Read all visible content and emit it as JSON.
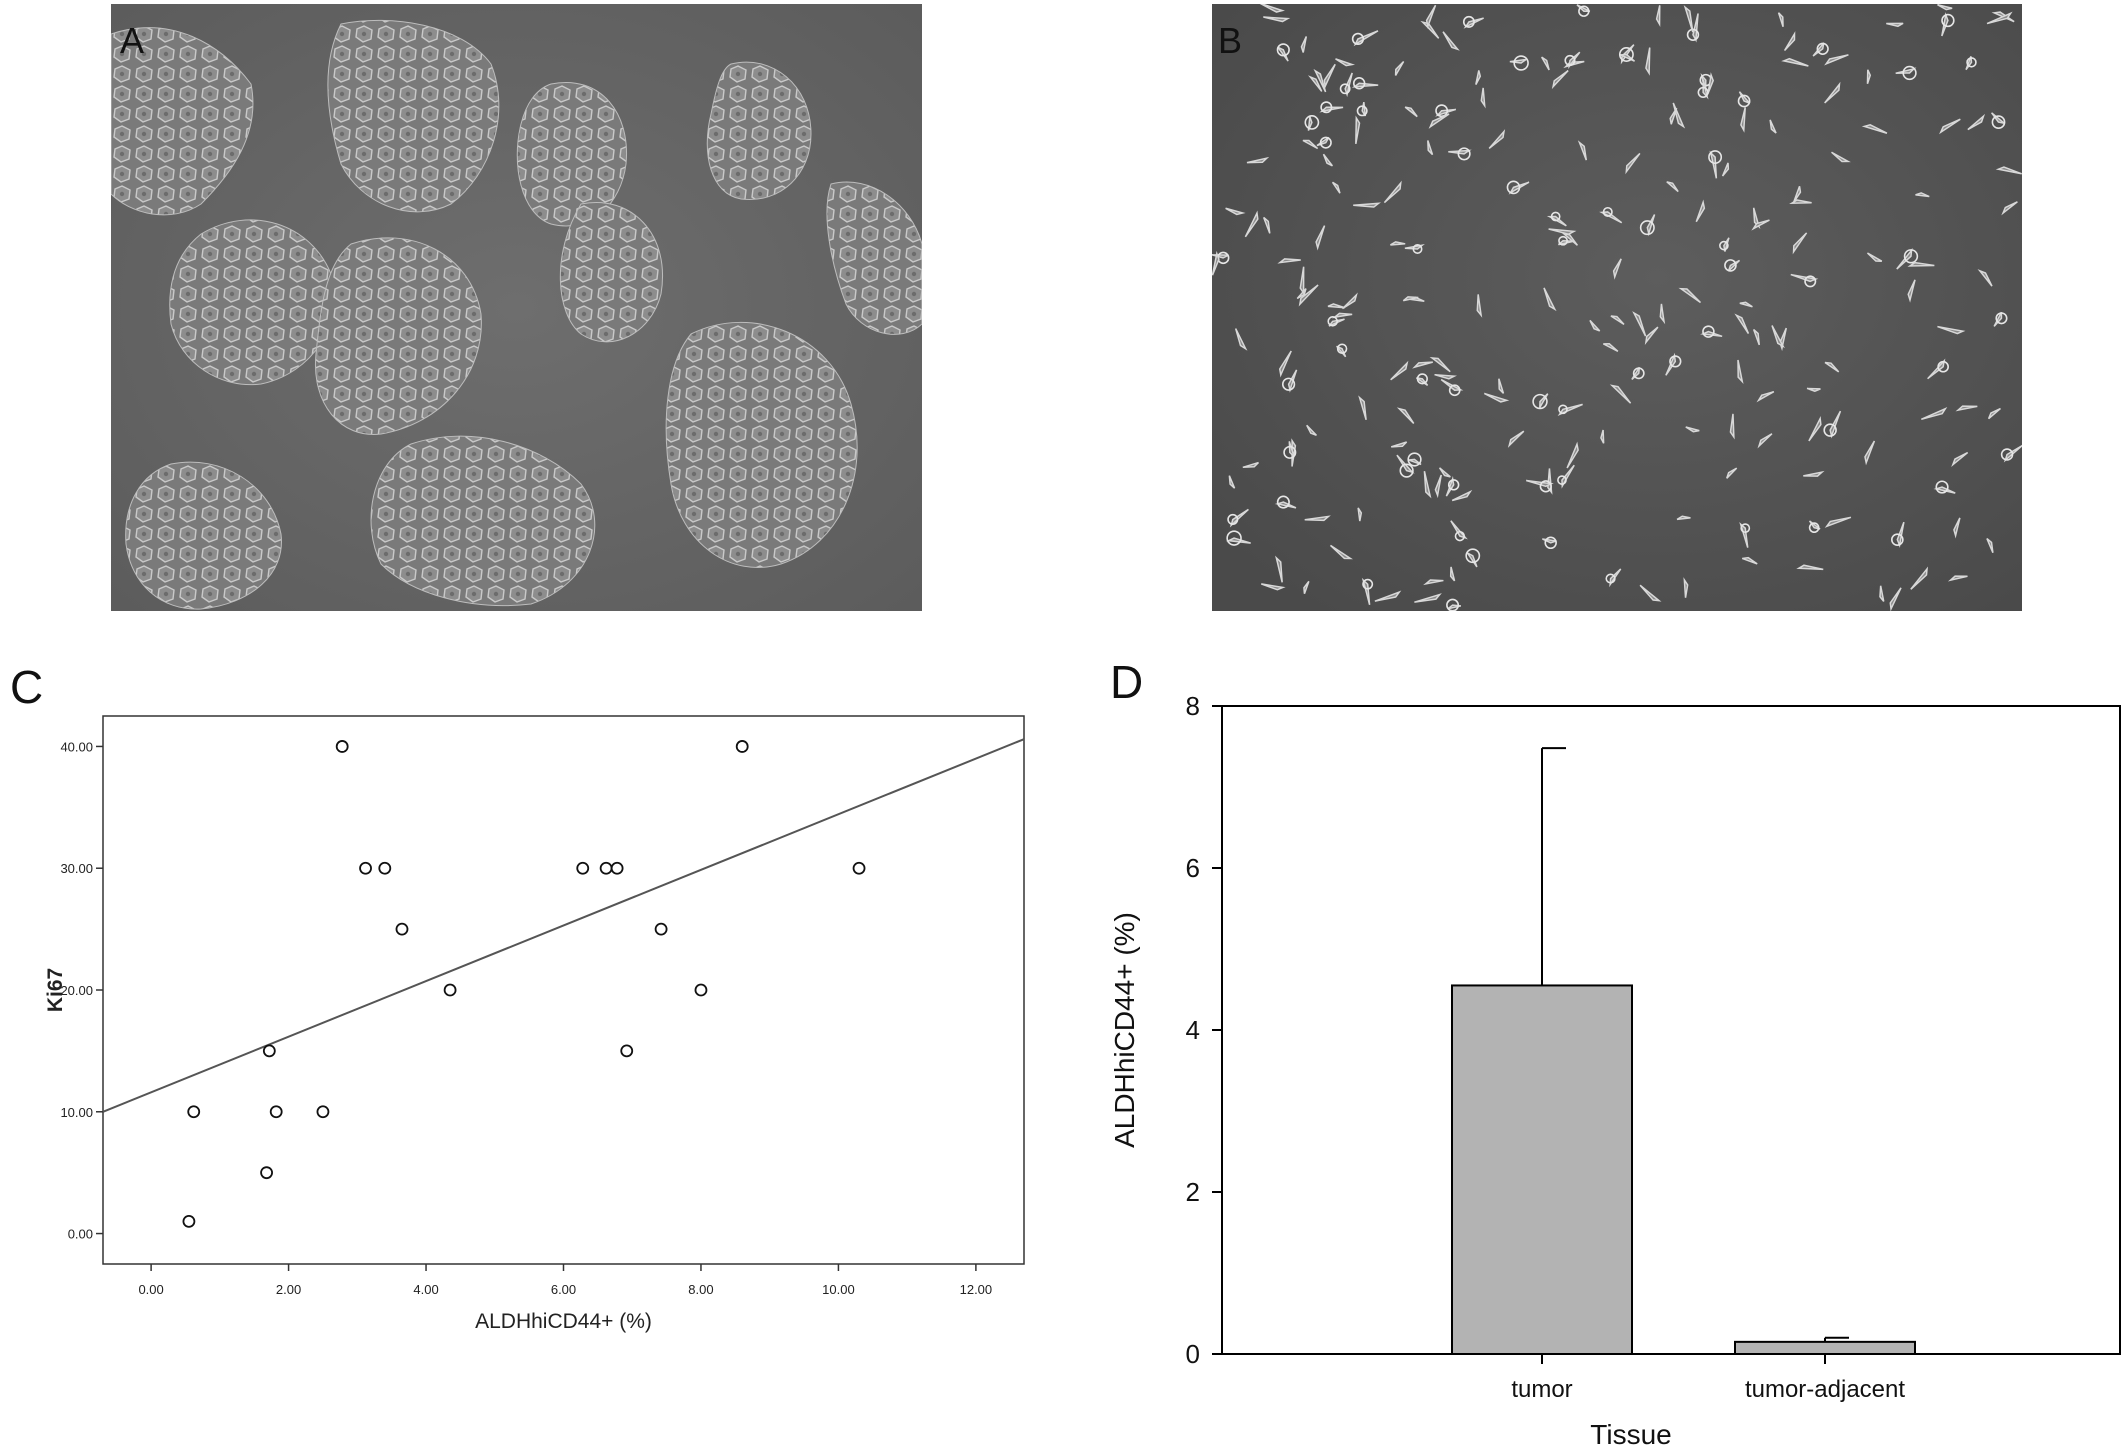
{
  "panels": {
    "a": {
      "label": "A"
    },
    "b": {
      "label": "B"
    },
    "c": {
      "label": "C"
    },
    "d": {
      "label": "D"
    }
  },
  "chart_data": [
    {
      "panel": "C",
      "type": "scatter",
      "title": "",
      "xlabel": "ALDHhiCD44+ (%)",
      "ylabel": "Ki67",
      "xlim": [
        -0.7,
        12.7
      ],
      "ylim": [
        -2.5,
        42.5
      ],
      "x_ticks": [
        0,
        2,
        4,
        6,
        8,
        10,
        12
      ],
      "x_tick_labels": [
        "0.00",
        "2.00",
        "4.00",
        "6.00",
        "8.00",
        "10.00",
        "12.00"
      ],
      "y_ticks": [
        0,
        10,
        20,
        30,
        40
      ],
      "y_tick_labels": [
        "0.00",
        "10.00",
        "20.00",
        "30.00",
        "40.00"
      ],
      "points": [
        {
          "x": 0.55,
          "y": 1
        },
        {
          "x": 0.62,
          "y": 10
        },
        {
          "x": 1.68,
          "y": 5
        },
        {
          "x": 1.72,
          "y": 15
        },
        {
          "x": 1.82,
          "y": 10
        },
        {
          "x": 2.5,
          "y": 10
        },
        {
          "x": 2.78,
          "y": 40
        },
        {
          "x": 3.12,
          "y": 30
        },
        {
          "x": 3.4,
          "y": 30
        },
        {
          "x": 3.65,
          "y": 25
        },
        {
          "x": 4.35,
          "y": 20
        },
        {
          "x": 6.28,
          "y": 30
        },
        {
          "x": 6.62,
          "y": 30
        },
        {
          "x": 6.78,
          "y": 30
        },
        {
          "x": 6.92,
          "y": 15
        },
        {
          "x": 7.42,
          "y": 25
        },
        {
          "x": 8.0,
          "y": 20
        },
        {
          "x": 8.6,
          "y": 40
        },
        {
          "x": 10.3,
          "y": 30
        }
      ],
      "fit_line": {
        "x0": -0.7,
        "y0": 10.0,
        "x1": 12.7,
        "y1": 40.6
      },
      "grid": false,
      "legend": "none"
    },
    {
      "panel": "D",
      "type": "bar",
      "title": "",
      "xlabel": "Tissue",
      "ylabel": "ALDHhiCD44+ (%)",
      "ylim": [
        0,
        8
      ],
      "y_ticks": [
        0,
        2,
        4,
        6,
        8
      ],
      "y_tick_labels": [
        "0",
        "2",
        "4",
        "6",
        "8"
      ],
      "categories": [
        "tumor",
        "tumor-adjacent"
      ],
      "values": [
        4.55,
        0.15
      ],
      "error_upper": [
        7.48,
        0.2
      ],
      "bar_color": "#b3b3b3",
      "grid": false,
      "legend": "none"
    }
  ]
}
